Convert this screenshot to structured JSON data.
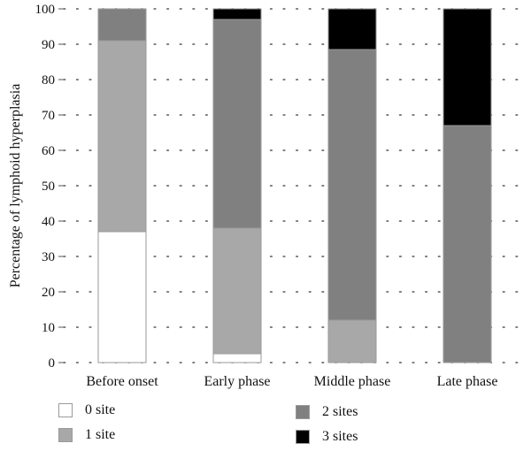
{
  "chart_data": {
    "type": "bar",
    "stacked": true,
    "categories": [
      "Before onset",
      "Early phase",
      "Middle phase",
      "Late phase"
    ],
    "series": [
      {
        "name": "0 site",
        "color": "#ffffff",
        "values": [
          37,
          2.5,
          0,
          0
        ]
      },
      {
        "name": "1 site",
        "color": "#a8a8a8",
        "values": [
          54,
          35.5,
          12,
          0
        ]
      },
      {
        "name": "2 sites",
        "color": "#808080",
        "values": [
          9,
          59,
          76.5,
          67
        ]
      },
      {
        "name": "3 sites",
        "color": "#000000",
        "values": [
          0,
          3,
          11.5,
          33
        ]
      }
    ],
    "ylabel": "Percentage of lymphoid hyperplasia",
    "ylim": [
      0,
      100
    ],
    "yticks": [
      0,
      10,
      20,
      30,
      40,
      50,
      60,
      70,
      80,
      90,
      100
    ],
    "grid": "dotted-horizontal",
    "legend_position": "bottom"
  }
}
